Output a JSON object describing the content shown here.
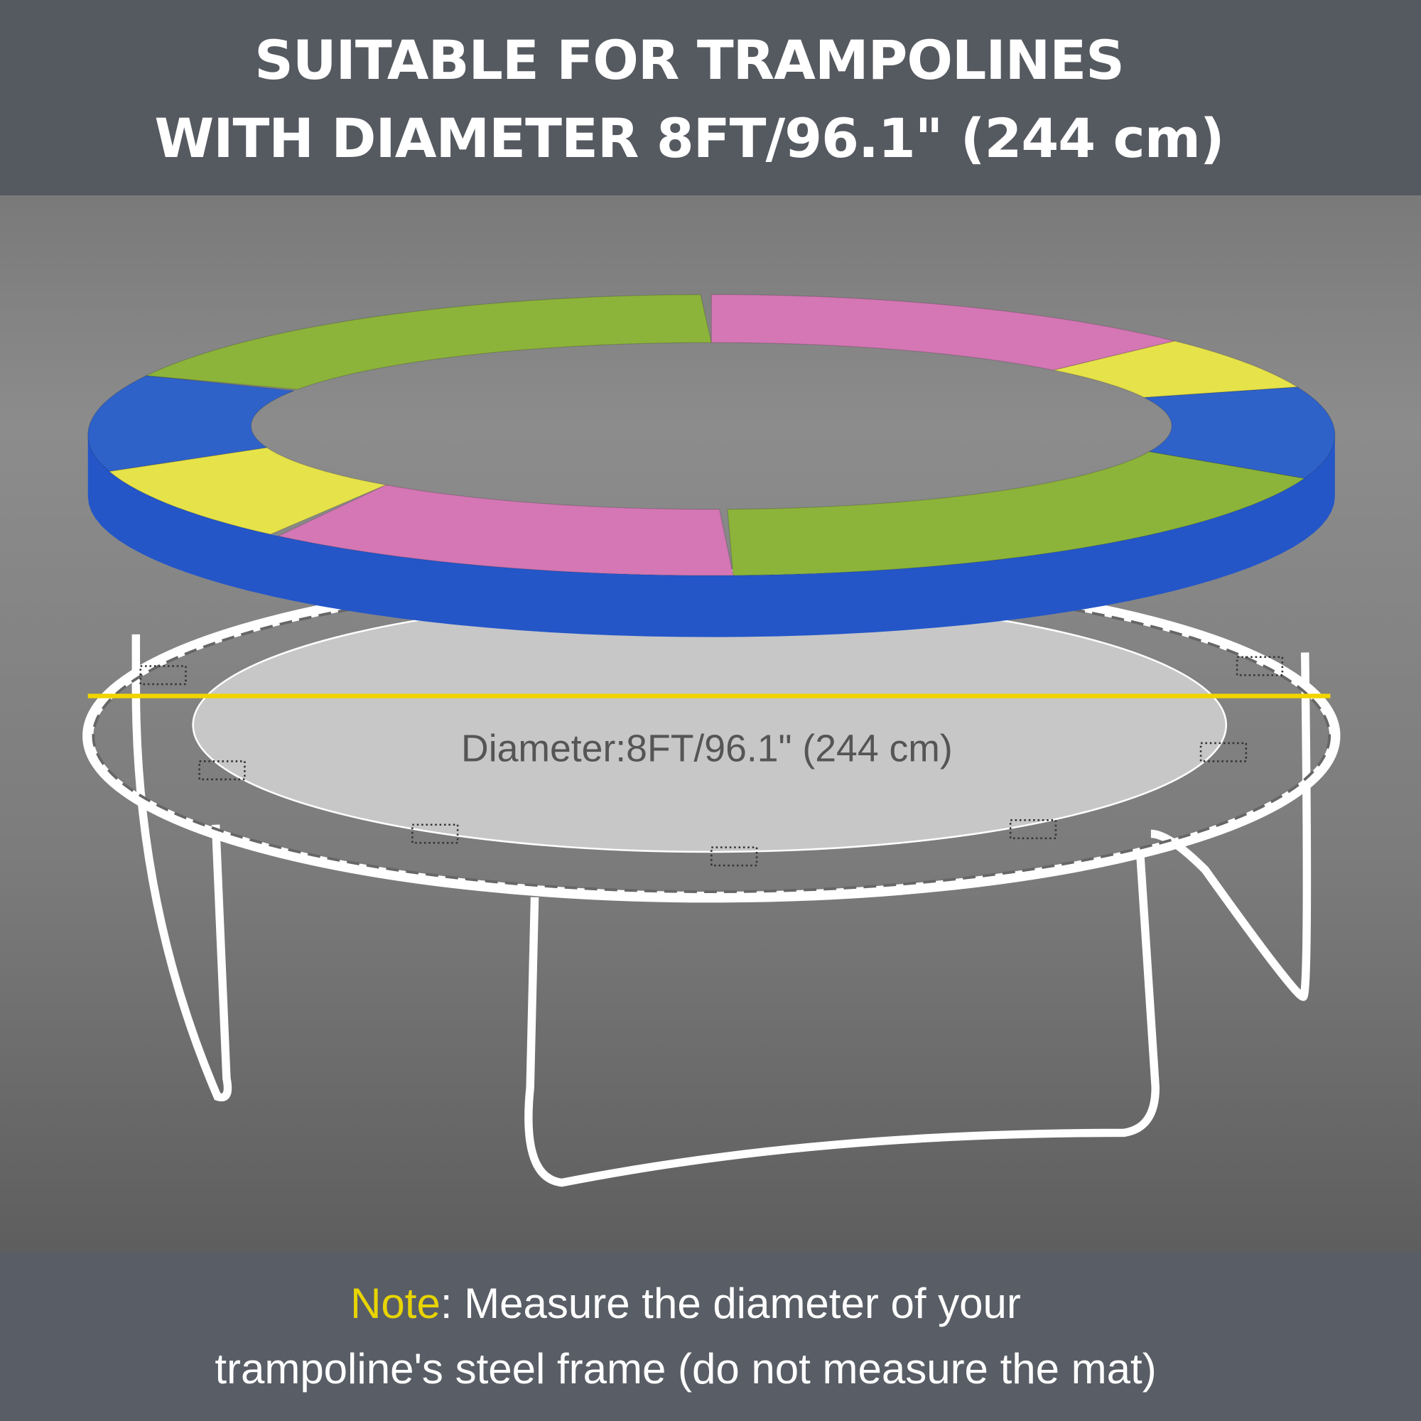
{
  "header": {
    "line1": "SUITABLE FOR TRAMPOLINES",
    "line2": "WITH DIAMETER 8FT/96.1\" (244 cm)"
  },
  "illustration": {
    "diameter_label": "Diameter:8FT/96.1\" (244 cm)",
    "pad_colors": [
      "#2f62c9",
      "#8cb43a",
      "#d477b4",
      "#e6e24a"
    ],
    "measure_line_color": "#f2d400"
  },
  "footer": {
    "note_label": "Note",
    "line1_rest": ": Measure the diameter of your",
    "line2": "trampoline's steel frame (do not measure the mat)"
  }
}
